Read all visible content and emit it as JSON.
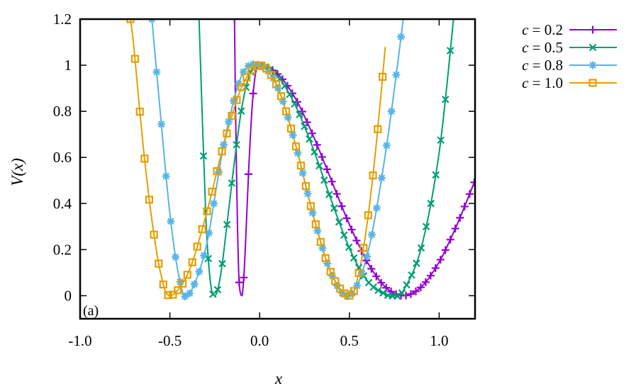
{
  "chart_data": {
    "type": "line",
    "panel_label": "(a)",
    "xlabel": "x",
    "ylabel": "V(x)",
    "xlim": [
      -1.0,
      1.2
    ],
    "ylim": [
      -0.1,
      1.2
    ],
    "xticks": [
      -1.0,
      -0.5,
      0.0,
      0.5,
      1.0
    ],
    "xtick_labels": [
      "-1.0",
      "-0.5",
      "0.0",
      "0.5",
      "1.0"
    ],
    "yticks": [
      0,
      0.2,
      0.4,
      0.6,
      0.8,
      1,
      1.2
    ],
    "ytick_labels": [
      "0",
      "0.2",
      "0.4",
      "0.6",
      "0.8",
      "1",
      "1.2"
    ],
    "grid": false,
    "legend_position": "outside-top-right",
    "series": [
      {
        "name": "c = 0.2",
        "c": 0.2,
        "marker": "plus",
        "color": "#9400d3",
        "x": [
          -0.14,
          -0.135,
          -0.125,
          -0.115,
          -0.1,
          -0.09,
          -0.08,
          -0.06,
          -0.04,
          -0.02,
          0.0,
          0.1,
          0.2,
          0.3,
          0.4,
          0.5,
          0.6,
          0.7,
          0.8,
          0.9,
          1.0,
          1.1,
          1.2
        ],
        "y": [
          1.2,
          0.855,
          0.373,
          0.071,
          0.0,
          0.059,
          0.202,
          0.561,
          0.839,
          0.977,
          1.0,
          0.962,
          0.855,
          0.691,
          0.5,
          0.309,
          0.146,
          0.038,
          0.0,
          0.038,
          0.146,
          0.309,
          0.5
        ]
      },
      {
        "name": "c = 0.5",
        "c": 0.5,
        "marker": "x",
        "color": "#009e73",
        "x": [
          -0.35,
          -0.325,
          -0.3,
          -0.275,
          -0.25,
          -0.225,
          -0.2,
          -0.15,
          -0.1,
          -0.05,
          0.0,
          0.1,
          0.2,
          0.3,
          0.4,
          0.5,
          0.6,
          0.7,
          0.75,
          0.8,
          0.9,
          1.0,
          1.08
        ],
        "y": [
          1.5,
          0.905,
          0.347,
          0.064,
          0.0,
          0.056,
          0.188,
          0.521,
          0.813,
          0.971,
          1.0,
          0.953,
          0.824,
          0.634,
          0.412,
          0.206,
          0.064,
          0.007,
          0.0,
          0.021,
          0.207,
          0.621,
          1.2
        ]
      },
      {
        "name": "c = 0.8",
        "c": 0.8,
        "marker": "star",
        "color": "#56b4e9",
        "x": [
          -0.6,
          -0.55,
          -0.5,
          -0.45,
          -0.4,
          -0.3,
          -0.2,
          -0.1,
          0.0,
          0.1,
          0.2,
          0.3,
          0.4,
          0.5,
          0.6,
          0.7,
          0.8,
          0.85
        ],
        "y": [
          1.2,
          0.765,
          0.356,
          0.086,
          0.0,
          0.206,
          0.655,
          0.955,
          1.0,
          0.905,
          0.655,
          0.345,
          0.095,
          0.0,
          0.178,
          0.612,
          1.2,
          1.55
        ]
      },
      {
        "name": "c = 1.0",
        "c": 1.0,
        "marker": "square",
        "color": "#e69f00",
        "x": [
          -0.72,
          -0.7,
          -0.65,
          -0.6,
          -0.55,
          -0.5,
          -0.4,
          -0.3,
          -0.2,
          -0.1,
          0.0,
          0.1,
          0.2,
          0.3,
          0.4,
          0.5,
          0.55,
          0.6,
          0.65,
          0.7
        ],
        "y": [
          1.2,
          1.075,
          0.659,
          0.327,
          0.093,
          0.0,
          0.095,
          0.345,
          0.655,
          0.905,
          1.0,
          0.905,
          0.655,
          0.345,
          0.095,
          0.0,
          0.09,
          0.32,
          0.66,
          1.08
        ]
      }
    ]
  }
}
